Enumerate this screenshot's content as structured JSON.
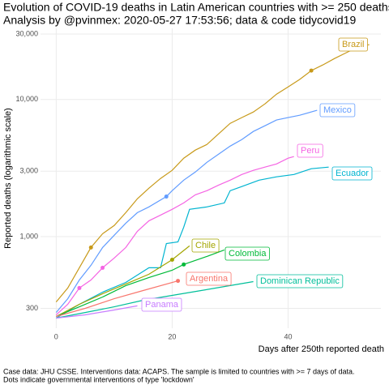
{
  "chart_data": {
    "type": "line",
    "title": "Evolution of COVID-19 deaths in Latin American countries with >= 250 deaths.",
    "subtitle": "Analysis by @pvinmex: 2020-05-27 17:53:56; data & code tidycovid19",
    "x_label": "Days after 250th reported death",
    "y_label": "Reported deaths (logarithmic scale)",
    "caption": [
      "Case data: JHU CSSE. Interventions data: ACAPS. The sample is limited to countries with >= 7 days of data.",
      "Dots indicate governmental interventions of type 'lockdown'"
    ],
    "log_y": true,
    "grid": true,
    "xlim": [
      -2.7,
      56
    ],
    "xticks": [
      0,
      20,
      40
    ],
    "ylim": [
      215,
      33000
    ],
    "yticks": [
      300,
      {
        "value": 1000,
        "label": "1,000"
      },
      {
        "value": 3000,
        "label": "3,000"
      },
      {
        "value": 10000,
        "label": "10,000"
      },
      {
        "value": 30000,
        "label": "30,000"
      }
    ],
    "series": [
      {
        "name": "Brazil",
        "color": "#c89a1a",
        "x": [
          0,
          2,
          4,
          6,
          8,
          10,
          12,
          14,
          16,
          18,
          20,
          22,
          24,
          26,
          28,
          30,
          32,
          34,
          36,
          38,
          40,
          42,
          44,
          46,
          48,
          50,
          52,
          54
        ],
        "values": [
          334,
          422,
          593,
          834,
          1050,
          1205,
          1496,
          1888,
          2255,
          2655,
          3043,
          3733,
          4277,
          4700,
          5610,
          6700,
          7380,
          8110,
          9290,
          10940,
          12360,
          14000,
          16250,
          17860,
          19900,
          21900,
          24100,
          25100
        ],
        "lockdown": {
          "x": [
            6,
            44
          ],
          "values": [
            834,
            16250
          ]
        }
      },
      {
        "name": "Mexico",
        "color": "#619cff",
        "x": [
          0,
          2,
          4,
          6,
          8,
          10,
          12,
          14,
          16,
          19,
          20,
          22,
          24,
          26,
          28,
          30,
          32,
          34,
          36,
          38,
          40,
          42,
          45
        ],
        "values": [
          280,
          353,
          483,
          618,
          834,
          1023,
          1253,
          1496,
          1648,
          1960,
          2163,
          2582,
          2958,
          3483,
          3990,
          4571,
          5100,
          5850,
          6430,
          7080,
          7380,
          7680,
          8340
        ],
        "lockdown": {
          "x": [
            19
          ],
          "values": [
            1960
          ]
        }
      },
      {
        "name": "Peru",
        "color": "#f564e3",
        "x": [
          0,
          2,
          4,
          6,
          8,
          10,
          12,
          14,
          16,
          18,
          20,
          22,
          24,
          26,
          28,
          30,
          32,
          34,
          36,
          38,
          40,
          41
        ],
        "values": [
          269,
          321,
          422,
          483,
          593,
          698,
          834,
          1094,
          1306,
          1436,
          1581,
          1762,
          2018,
          2163,
          2377,
          2582,
          2838,
          3043,
          3214,
          3388,
          3733,
          3837
        ],
        "lockdown": {
          "x": [
            4,
            8
          ],
          "values": [
            422,
            593
          ]
        }
      },
      {
        "name": "Ecuador",
        "color": "#00b4d0",
        "x": [
          0,
          4,
          8,
          12,
          16,
          18,
          19,
          21,
          22,
          23,
          26,
          29,
          30,
          32,
          35,
          38,
          41,
          44,
          47
        ],
        "values": [
          255,
          321,
          394,
          464,
          593,
          593,
          891,
          916,
          1172,
          1581,
          1648,
          1762,
          2163,
          2317,
          2582,
          2729,
          2838,
          3126,
          3214
        ]
      },
      {
        "name": "Chile",
        "color": "#a3a500",
        "x": [
          0,
          4,
          8,
          12,
          16,
          20,
          23
        ],
        "values": [
          262,
          321,
          384,
          452,
          532,
          679,
          857
        ],
        "lockdown": {
          "x": [
            20
          ],
          "values": [
            679
          ]
        }
      },
      {
        "name": "Colombia",
        "color": "#00ba38",
        "x": [
          0,
          4,
          8,
          12,
          16,
          20,
          22,
          26,
          29
        ],
        "values": [
          262,
          308,
          363,
          440,
          504,
          569,
          627,
          718,
          800
        ],
        "lockdown": {
          "x": [
            22
          ],
          "values": [
            627
          ]
        }
      },
      {
        "name": "Argentina",
        "color": "#f8766d",
        "x": [
          0,
          5,
          10,
          15,
          21
        ],
        "values": [
          262,
          300,
          353,
          405,
          476
        ],
        "lockdown": {
          "x": [
            21
          ],
          "values": [
            476
          ]
        }
      },
      {
        "name": "Dominican Republic",
        "color": "#00bf9a",
        "x": [
          0,
          5,
          10,
          15,
          20,
          25,
          30,
          34
        ],
        "values": [
          255,
          280,
          308,
          344,
          373,
          405,
          440,
          470
        ]
      },
      {
        "name": "Panama",
        "color": "#c77cff",
        "x": [
          0,
          5,
          10,
          14
        ],
        "values": [
          255,
          269,
          292,
          313
        ]
      }
    ]
  }
}
